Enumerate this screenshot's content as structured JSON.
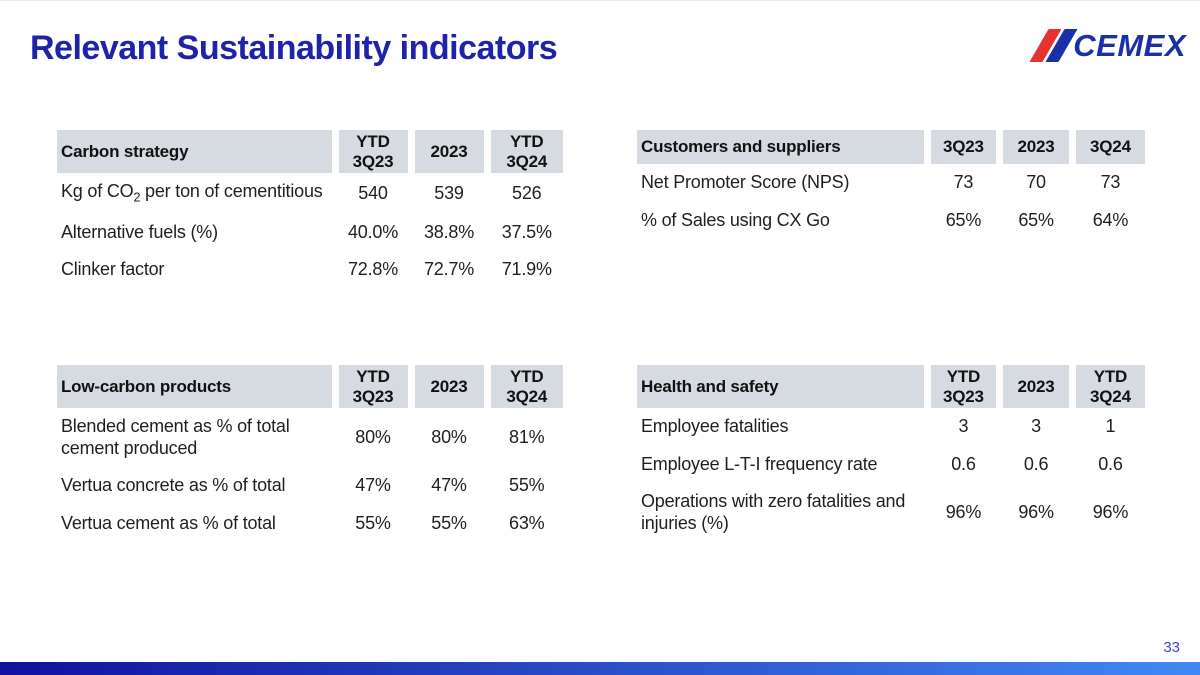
{
  "slide": {
    "title": "Relevant Sustainability indicators",
    "page_number": "33"
  },
  "logo": {
    "text": "CEMEX"
  },
  "colors": {
    "title": "#1e23a9",
    "header_bg": "#d6dae1",
    "body_text": "#1f1f1f",
    "header_text": "#111111",
    "page_number": "#3f46c0",
    "bar_left": "#1111a0",
    "bar_right": "#4189f2",
    "logo_red": "#e5332e",
    "logo_blue": "#1b2fa8"
  },
  "tables": {
    "carbon_strategy": {
      "title": "Carbon strategy",
      "columns": [
        "YTD 3Q23",
        "2023",
        "YTD 3Q24"
      ],
      "rows": [
        {
          "label_pre": "Kg of CO",
          "label_sub": "2",
          "label_post": " per ton of cementitious",
          "values": [
            "540",
            "539",
            "526"
          ]
        },
        {
          "label": "Alternative fuels (%)",
          "values": [
            "40.0%",
            "38.8%",
            "37.5%"
          ]
        },
        {
          "label": "Clinker factor",
          "values": [
            "72.8%",
            "72.7%",
            "71.9%"
          ]
        }
      ]
    },
    "customers_suppliers": {
      "title": "Customers and suppliers",
      "columns": [
        "3Q23",
        "2023",
        "3Q24"
      ],
      "rows": [
        {
          "label": "Net Promoter Score (NPS)",
          "values": [
            "73",
            "70",
            "73"
          ]
        },
        {
          "label": "% of Sales using CX Go",
          "values": [
            "65%",
            "65%",
            "64%"
          ]
        }
      ]
    },
    "low_carbon_products": {
      "title": "Low-carbon products",
      "columns": [
        "YTD 3Q23",
        "2023",
        "YTD 3Q24"
      ],
      "rows": [
        {
          "label": "Blended cement as % of total cement produced",
          "values": [
            "80%",
            "80%",
            "81%"
          ]
        },
        {
          "label": "Vertua concrete as % of total",
          "values": [
            "47%",
            "47%",
            "55%"
          ]
        },
        {
          "label": "Vertua cement as % of total",
          "values": [
            "55%",
            "55%",
            "63%"
          ]
        }
      ]
    },
    "health_safety": {
      "title": "Health and safety",
      "columns": [
        "YTD 3Q23",
        "2023",
        "YTD 3Q24"
      ],
      "rows": [
        {
          "label": "Employee fatalities",
          "values": [
            "3",
            "3",
            "1"
          ]
        },
        {
          "label": "Employee L-T-I frequency rate",
          "values": [
            "0.6",
            "0.6",
            "0.6"
          ]
        },
        {
          "label": "Operations with zero fatalities and injuries (%)",
          "values": [
            "96%",
            "96%",
            "96%"
          ]
        }
      ]
    }
  }
}
